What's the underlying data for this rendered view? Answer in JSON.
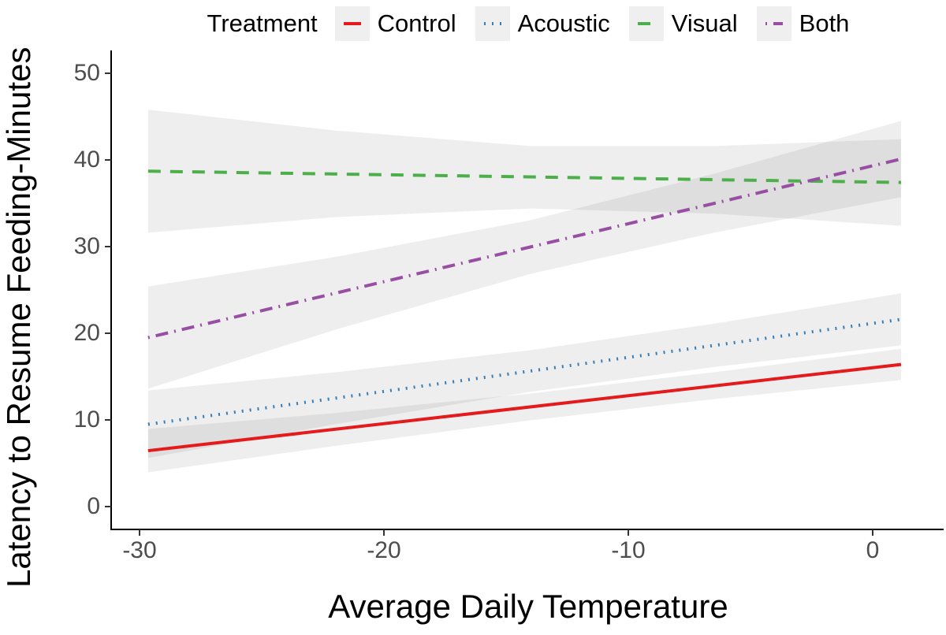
{
  "legend": {
    "title": "Treatment",
    "items": [
      {
        "label": "Control",
        "color": "#e41a1c",
        "linetype": "solid"
      },
      {
        "label": "Acoustic",
        "color": "#377eb8",
        "linetype": "dotted"
      },
      {
        "label": "Visual",
        "color": "#4daf4a",
        "linetype": "dashed"
      },
      {
        "label": "Both",
        "color": "#984ea3",
        "linetype": "dotdash"
      }
    ]
  },
  "x_axis": {
    "title": "Average Daily Temperature",
    "ticks": [
      {
        "value": -30,
        "label": "-30"
      },
      {
        "value": -20,
        "label": "-20"
      },
      {
        "value": -10,
        "label": "-10"
      },
      {
        "value": 0,
        "label": "0"
      }
    ]
  },
  "y_axis": {
    "title": "Latency to Resume Feeding-Minutes",
    "ticks": [
      {
        "value": 0,
        "label": "0"
      },
      {
        "value": 10,
        "label": "10"
      },
      {
        "value": 20,
        "label": "20"
      },
      {
        "value": 30,
        "label": "30"
      },
      {
        "value": 40,
        "label": "40"
      },
      {
        "value": 50,
        "label": "50"
      }
    ]
  },
  "chart_data": {
    "type": "line",
    "title": "",
    "xlabel": "Average Daily Temperature",
    "ylabel": "Latency to Resume Feeding-Minutes",
    "xlim": [
      -31.2,
      3.0
    ],
    "ylim": [
      0,
      50
    ],
    "grid": false,
    "legend_position": "top",
    "ci_band_color": "#000000",
    "ci_band_opacity": 0.065,
    "series": [
      {
        "name": "Control",
        "color": "#e41a1c",
        "linetype": "solid",
        "line": {
          "x": [
            -29.65,
            1.16
          ],
          "y": [
            6.45,
            16.4
          ]
        },
        "ci_band": {
          "x": [
            -29.65,
            -22.0,
            -14.0,
            -6.5,
            1.16
          ],
          "upper": [
            8.95,
            10.8,
            13.05,
            15.5,
            18.2
          ],
          "lower": [
            3.95,
            7.0,
            9.95,
            12.4,
            14.6
          ]
        }
      },
      {
        "name": "Acoustic",
        "color": "#377eb8",
        "linetype": "dotted",
        "line": {
          "x": [
            -29.65,
            1.16
          ],
          "y": [
            9.5,
            21.6
          ]
        },
        "ci_band": {
          "x": [
            -29.65,
            -22.0,
            -14.0,
            -6.5,
            1.16
          ],
          "upper": [
            13.4,
            15.5,
            18.05,
            21.1,
            24.6
          ],
          "lower": [
            5.6,
            9.5,
            13.25,
            16.1,
            18.6
          ]
        }
      },
      {
        "name": "Visual",
        "color": "#4daf4a",
        "linetype": "dashed",
        "line": {
          "x": [
            -29.65,
            1.16
          ],
          "y": [
            38.7,
            37.4
          ]
        },
        "ci_band": {
          "x": [
            -29.65,
            -22.0,
            -14.0,
            -6.5,
            1.16
          ],
          "upper": [
            45.8,
            43.4,
            41.6,
            41.6,
            42.4
          ],
          "lower": [
            31.6,
            33.4,
            34.4,
            33.8,
            32.4
          ]
        }
      },
      {
        "name": "Both",
        "color": "#984ea3",
        "linetype": "dotdash",
        "line": {
          "x": [
            -29.65,
            1.16
          ],
          "y": [
            19.5,
            40.1
          ]
        },
        "ci_band": {
          "x": [
            -29.65,
            -22.0,
            -14.0,
            -6.5,
            1.16
          ],
          "upper": [
            25.4,
            28.8,
            33.05,
            38.4,
            44.5
          ],
          "lower": [
            13.6,
            20.4,
            26.85,
            31.6,
            35.7
          ]
        }
      }
    ]
  },
  "style": {
    "axis_line_color": "#000000",
    "tick_color": "#333333",
    "tick_label_color": "#4d4d4d",
    "legend_key_fill": "#efefef",
    "background": "#ffffff"
  }
}
